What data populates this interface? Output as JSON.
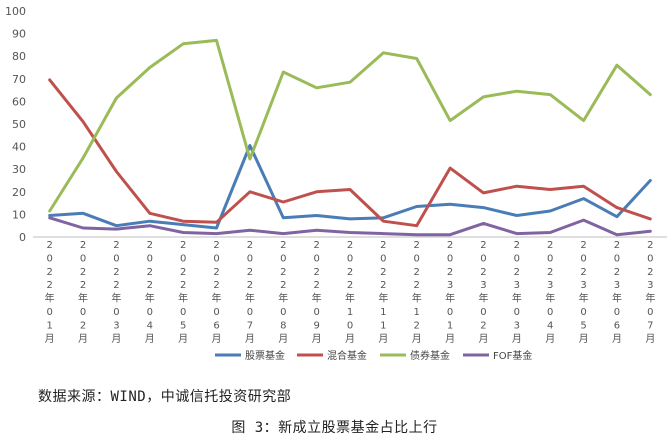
{
  "chart_data": {
    "type": "line",
    "categories": [
      "2022年01月",
      "2022年02月",
      "2022年03月",
      "2022年04月",
      "2022年05月",
      "2022年06月",
      "2022年07月",
      "2022年08月",
      "2022年09月",
      "2022年10月",
      "2022年11月",
      "2022年12月",
      "2023年01月",
      "2023年02月",
      "2023年03月",
      "2023年04月",
      "2023年05月",
      "2023年06月",
      "2023年07月"
    ],
    "ylim": [
      0,
      100
    ],
    "yticks": [
      0,
      10,
      20,
      30,
      40,
      50,
      60,
      70,
      80,
      90,
      100
    ],
    "grid": false,
    "legend_position": "bottom",
    "series": [
      {
        "name": "股票基金",
        "color": "#4a7db5",
        "values": [
          9.5,
          10.5,
          5,
          7,
          5.5,
          4,
          40.5,
          8.5,
          9.5,
          8,
          8.5,
          13.5,
          14.5,
          13,
          9.5,
          11.5,
          17,
          9,
          25
        ]
      },
      {
        "name": "混合基金",
        "color": "#c0504d",
        "values": [
          69.5,
          51,
          29,
          10.5,
          7,
          6.5,
          20,
          15.5,
          20,
          21,
          7,
          5,
          30.5,
          19.5,
          22.5,
          21,
          22.5,
          13,
          8
        ]
      },
      {
        "name": "债券基金",
        "color": "#9bbb59",
        "values": [
          11.5,
          35,
          61.5,
          75,
          85.5,
          87,
          34.5,
          73,
          66,
          68.5,
          81.5,
          79,
          51.5,
          62,
          64.5,
          63,
          51.5,
          76,
          63
        ]
      },
      {
        "name": "FOF基金",
        "color": "#8064a2",
        "values": [
          8.5,
          4,
          3.5,
          5,
          2,
          1.5,
          3,
          1.5,
          3,
          2,
          1.5,
          1,
          1,
          6,
          1.5,
          2,
          7.5,
          1,
          2.5
        ]
      }
    ]
  },
  "footer": {
    "source": "数据来源：WIND，中诚信托投资研究部",
    "caption": "图 3：新成立股票基金占比上行"
  }
}
